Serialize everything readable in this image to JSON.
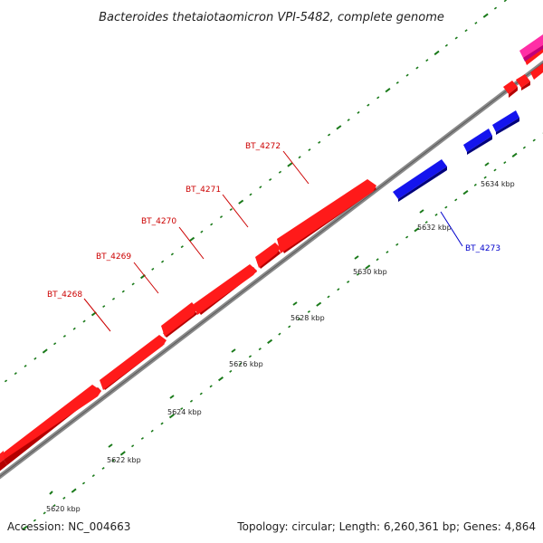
{
  "title": "Bacteroides thetaiotaomicron VPI-5482, complete genome",
  "footer": {
    "accession": "Accession: NC_004663",
    "summary": "Topology: circular; Length: 6,260,361 bp; Genes: 4,864"
  },
  "colors": {
    "forward": "#ff0000",
    "forward_dark": "#b40000",
    "reverse": "#1010ee",
    "reverse_dark": "#00007a",
    "other": "#ff2ea6",
    "backbone": "#8a8a8a",
    "tick": "#1a7a1a",
    "forward_label": "#cc0000",
    "reverse_label": "#0000cc"
  },
  "ticks": [
    {
      "label": "5620 kbp"
    },
    {
      "label": "5622 kbp"
    },
    {
      "label": "5624 kbp"
    },
    {
      "label": "5626 kbp"
    },
    {
      "label": "5628 kbp"
    },
    {
      "label": "5630 kbp"
    },
    {
      "label": "5632 kbp"
    },
    {
      "label": "5634 kbp"
    }
  ],
  "genes": [
    {
      "name": "BT_4268",
      "strand": "forward"
    },
    {
      "name": "BT_4269",
      "strand": "forward"
    },
    {
      "name": "BT_4270",
      "strand": "forward"
    },
    {
      "name": "BT_4271",
      "strand": "forward"
    },
    {
      "name": "BT_4272",
      "strand": "forward"
    },
    {
      "name": "BT_4273",
      "strand": "reverse"
    }
  ]
}
